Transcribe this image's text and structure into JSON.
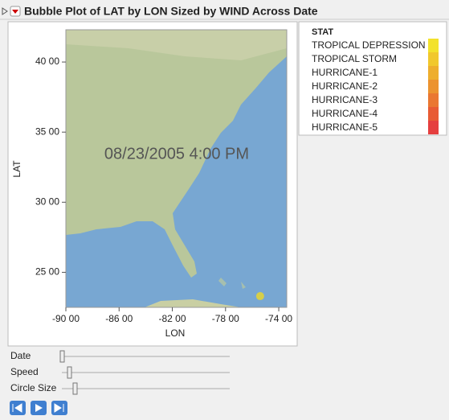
{
  "chart_data": {
    "type": "bubble",
    "title": "Bubble Plot of LAT by LON Sized by WIND Across Date",
    "x_label": "LON",
    "y_label": "LAT",
    "annotation": "08/23/2005 4:00 PM",
    "x": [
      -75.4
    ],
    "y": [
      23.3
    ],
    "color": "#e0d33a",
    "xlim": [
      -90,
      -73.4
    ],
    "ylim": [
      22.5,
      42.3
    ],
    "xticks": [
      {
        "value": -90,
        "label": "-90 00"
      },
      {
        "value": -86,
        "label": "-86 00"
      },
      {
        "value": -82,
        "label": "-82 00"
      },
      {
        "value": -78,
        "label": "-78 00"
      },
      {
        "value": -74,
        "label": "-74 00"
      }
    ],
    "yticks": [
      {
        "value": 25,
        "label": "25 00"
      },
      {
        "value": 30,
        "label": "30 00"
      },
      {
        "value": 35,
        "label": "35 00"
      },
      {
        "value": 40,
        "label": "40 00"
      }
    ],
    "legend": {
      "title": "STAT",
      "items": [
        {
          "name": "TROPICAL DEPRESSION",
          "color": "#f3e22b"
        },
        {
          "name": "TROPICAL STORM",
          "color": "#f1c82c"
        },
        {
          "name": "HURRICANE-1",
          "color": "#eeae2d"
        },
        {
          "name": "HURRICANE-2",
          "color": "#ec932f"
        },
        {
          "name": "HURRICANE-3",
          "color": "#ea7731"
        },
        {
          "name": "HURRICANE-4",
          "color": "#e85b34"
        },
        {
          "name": "HURRICANE-5",
          "color": "#e53f3f"
        }
      ]
    }
  },
  "controls": {
    "sliders": [
      "Date",
      "Speed",
      "Circle Size"
    ]
  }
}
